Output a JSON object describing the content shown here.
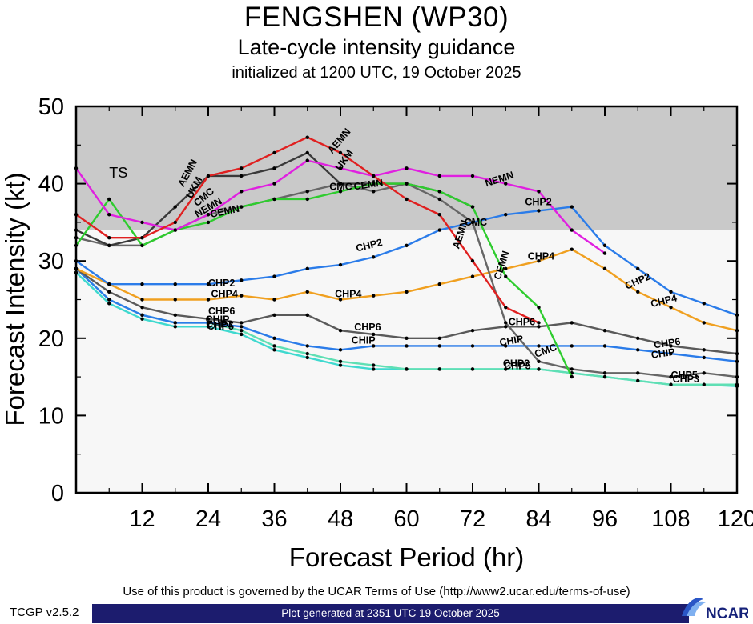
{
  "chart_data": {
    "type": "line",
    "title": "FENGSHEN (WP30)",
    "subtitle": "Late-cycle intensity guidance",
    "init_line": "initialized at 1200 UTC, 19 October 2025",
    "xlabel": "Forecast Period (hr)",
    "ylabel": "Forecast Intensity (kt)",
    "xlim": [
      0,
      120
    ],
    "ylim": [
      0,
      50
    ],
    "xticks": [
      12,
      24,
      36,
      48,
      60,
      72,
      84,
      96,
      108,
      120
    ],
    "yticks": [
      0,
      10,
      20,
      30,
      40,
      50
    ],
    "x_step_hr": 6,
    "ts_threshold_kt": 34,
    "ts_label": "TS",
    "ts_band_color": "#c9c9c9",
    "plot_bg_color": "#f7f7f7",
    "series": [
      {
        "name": "CHP5",
        "color": "#3fd9cf",
        "values": [
          28.5,
          24.5,
          22.5,
          21.5,
          21.5,
          20.5,
          18.5,
          17.5,
          16.5,
          16,
          16,
          16,
          16,
          16,
          16,
          15.5,
          15,
          14.5,
          14,
          14,
          13.8
        ]
      },
      {
        "name": "CHP3",
        "color": "#5fdfb4",
        "values": [
          29,
          25,
          23,
          22,
          22,
          21,
          19,
          18,
          17,
          16.5,
          16,
          16,
          16,
          16,
          16,
          15.5,
          15,
          14.5,
          14,
          14,
          14
        ]
      },
      {
        "name": "CHIP",
        "color": "#2b7ce9",
        "values": [
          29,
          25,
          23,
          22,
          22,
          21.5,
          20,
          19,
          18.5,
          19,
          19,
          19,
          19,
          19,
          19,
          19,
          19,
          18.5,
          18,
          17.5,
          17
        ]
      },
      {
        "name": "CHP6",
        "color": "#5a5a5a",
        "values": [
          29,
          26,
          24,
          23,
          22.5,
          22,
          23,
          23,
          21,
          20.5,
          20,
          20,
          21,
          21.5,
          21.5,
          22,
          21,
          20,
          19,
          18.5,
          18
        ]
      },
      {
        "name": "CHP4",
        "color": "#f0a020",
        "values": [
          29,
          27,
          25,
          25,
          25,
          25.5,
          25,
          26,
          25,
          25.5,
          26,
          27,
          28,
          29,
          30,
          31.5,
          29,
          26,
          24,
          22,
          21
        ]
      },
      {
        "name": "CHP2",
        "color": "#2b7ce9",
        "values": [
          30,
          27,
          27,
          27,
          27,
          27.5,
          28,
          29,
          29.5,
          30.5,
          32,
          34,
          35,
          36,
          36.5,
          37,
          32,
          29,
          26,
          24.5,
          23
        ]
      },
      {
        "name": "CMC",
        "color": "#666666",
        "values": [
          33,
          32,
          32,
          34,
          36,
          37,
          38,
          39,
          40,
          39,
          40,
          38,
          35,
          22,
          17,
          16,
          15.5,
          15.5,
          15,
          15.5,
          15
        ]
      },
      {
        "name": "UKM",
        "color": "#3a3a3a",
        "values": [
          34,
          32,
          33,
          37,
          41,
          41,
          42,
          44,
          40,
          40,
          40,
          39,
          37
        ]
      },
      {
        "name": "CEMN",
        "color": "#2ecc2e",
        "values": [
          32,
          38,
          32,
          34,
          35,
          37,
          38,
          38,
          39,
          40,
          40,
          39,
          37,
          28,
          24,
          15
        ]
      },
      {
        "name": "NEMN",
        "color": "#e020e0",
        "values": [
          42,
          36,
          35,
          34,
          36,
          39,
          40,
          43,
          42,
          41,
          42,
          41,
          41,
          40,
          39,
          34,
          31
        ]
      },
      {
        "name": "AEMN",
        "color": "#e02020",
        "values": [
          36,
          33,
          33,
          35,
          41,
          42,
          44,
          46,
          44,
          41,
          38,
          36,
          30,
          24,
          22
        ]
      }
    ],
    "labels": [
      {
        "text": "AEMN",
        "x": 19.5,
        "y": 39.5,
        "rot": -62
      },
      {
        "text": "UKM",
        "x": 21.0,
        "y": 38.0,
        "rot": -62
      },
      {
        "text": "CMC",
        "x": 22.0,
        "y": 37.0,
        "rot": -40
      },
      {
        "text": "NEMN",
        "x": 22.0,
        "y": 35.6,
        "rot": -30
      },
      {
        "text": "CEMN",
        "x": 24.5,
        "y": 35.6,
        "rot": -12
      },
      {
        "text": "AEMN",
        "x": 46.5,
        "y": 43.8,
        "rot": -50
      },
      {
        "text": "UKM",
        "x": 48.0,
        "y": 41.6,
        "rot": -55
      },
      {
        "text": "CMC",
        "x": 46.0,
        "y": 39.2,
        "rot": 0
      },
      {
        "text": "CEMN",
        "x": 50.5,
        "y": 39.2,
        "rot": -8
      },
      {
        "text": "NEMN",
        "x": 74.5,
        "y": 39.6,
        "rot": -18
      },
      {
        "text": "CHP2",
        "x": 81.5,
        "y": 37.2,
        "rot": 0
      },
      {
        "text": "CMC",
        "x": 70.5,
        "y": 34.6,
        "rot": 0
      },
      {
        "text": "AEMN",
        "x": 69.5,
        "y": 31.5,
        "rot": -72
      },
      {
        "text": "CEMN",
        "x": 77.0,
        "y": 27.5,
        "rot": -72
      },
      {
        "text": "CHP4",
        "x": 82.0,
        "y": 30.2,
        "rot": 0
      },
      {
        "text": "CHP2",
        "x": 51.0,
        "y": 31.2,
        "rot": -14
      },
      {
        "text": "CHP2",
        "x": 24.0,
        "y": 26.7,
        "rot": 0
      },
      {
        "text": "CHP4",
        "x": 24.5,
        "y": 25.3,
        "rot": 0
      },
      {
        "text": "CHP4",
        "x": 47.0,
        "y": 25.3,
        "rot": 0
      },
      {
        "text": "CHP6",
        "x": 24.0,
        "y": 23.1,
        "rot": 0
      },
      {
        "text": "CHIP",
        "x": 23.5,
        "y": 22.0,
        "rot": 0
      },
      {
        "text": "CHP3",
        "x": 23.6,
        "y": 21.4,
        "rot": 0
      },
      {
        "text": "CHP5",
        "x": 23.8,
        "y": 21.1,
        "rot": 0
      },
      {
        "text": "CHP6",
        "x": 50.5,
        "y": 21.0,
        "rot": 0
      },
      {
        "text": "CHIP",
        "x": 50.0,
        "y": 19.3,
        "rot": 0
      },
      {
        "text": "CHP6",
        "x": 78.5,
        "y": 21.7,
        "rot": 0
      },
      {
        "text": "CHIP",
        "x": 77.0,
        "y": 19.0,
        "rot": -10
      },
      {
        "text": "CMC",
        "x": 83.5,
        "y": 17.5,
        "rot": -20
      },
      {
        "text": "CHP3",
        "x": 77.5,
        "y": 16.3,
        "rot": 0
      },
      {
        "text": "CHP5",
        "x": 77.7,
        "y": 16.0,
        "rot": 0
      },
      {
        "text": "CHP2",
        "x": 100.0,
        "y": 26.3,
        "rot": -24
      },
      {
        "text": "CHP4",
        "x": 104.5,
        "y": 24.0,
        "rot": -14
      },
      {
        "text": "CHP6",
        "x": 105.0,
        "y": 18.7,
        "rot": -8
      },
      {
        "text": "CHIP",
        "x": 104.5,
        "y": 17.4,
        "rot": -8
      },
      {
        "text": "CHP5",
        "x": 108.0,
        "y": 14.8,
        "rot": 0
      },
      {
        "text": "CHP3",
        "x": 108.3,
        "y": 14.3,
        "rot": 0
      }
    ]
  },
  "footer": {
    "terms": "Use of this product is governed by the UCAR Terms of Use (http://www2.ucar.edu/terms-of-use)",
    "generated": "Plot generated at 2351 UTC   19 October 2025",
    "version": "TCGP v2.5.2",
    "logo_text": "NCAR"
  }
}
